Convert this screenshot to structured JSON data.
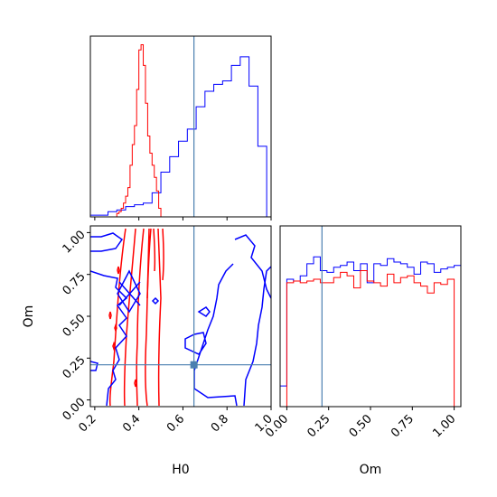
{
  "chart_data": {
    "type": "corner",
    "parameters": [
      "H0",
      "Om"
    ],
    "xlabels": {
      "H0": "H0",
      "Om": "Om"
    },
    "ylabels": {
      "Om": "Om"
    },
    "ranges": {
      "H0": [
        0.18,
        1.0
      ],
      "Om": [
        -0.04,
        1.04
      ]
    },
    "ticks": {
      "H0": {
        "values": [
          0.2,
          0.4,
          0.6,
          0.8,
          1.0
        ],
        "labels": [
          "0.2",
          "0.4",
          "0.6",
          "0.8",
          "1.0"
        ]
      },
      "Om": {
        "values": [
          0.0,
          0.25,
          0.5,
          0.75,
          1.0
        ],
        "labels": [
          "0.00",
          "0.25",
          "0.50",
          "0.75",
          "1.00"
        ]
      }
    },
    "truth": {
      "H0": 0.65,
      "Om": 0.21,
      "color": "#4a7fb0"
    },
    "series_colors": {
      "red": "#ff0000",
      "blue": "#0000ff"
    },
    "hist_H0": {
      "bin_edges": [
        0.18,
        0.22,
        0.26,
        0.3,
        0.34,
        0.38,
        0.42,
        0.46,
        0.5,
        0.54,
        0.58,
        0.62,
        0.66,
        0.7,
        0.74,
        0.78,
        0.82,
        0.86,
        0.9,
        0.94,
        0.98
      ],
      "blue": [
        0.01,
        0.01,
        0.03,
        0.04,
        0.06,
        0.07,
        0.08,
        0.14,
        0.26,
        0.35,
        0.44,
        0.51,
        0.64,
        0.73,
        0.77,
        0.79,
        0.88,
        0.93,
        0.76,
        0.41
      ],
      "red_x": [
        0.3,
        0.31,
        0.32,
        0.33,
        0.34,
        0.35,
        0.36,
        0.37,
        0.38,
        0.39,
        0.4,
        0.41,
        0.42,
        0.43,
        0.44,
        0.45,
        0.46,
        0.47,
        0.48,
        0.49,
        0.5
      ],
      "red": [
        0.02,
        0.03,
        0.05,
        0.08,
        0.12,
        0.17,
        0.3,
        0.42,
        0.53,
        0.74,
        0.97,
        1.0,
        0.88,
        0.66,
        0.47,
        0.37,
        0.3,
        0.23,
        0.15,
        0.05,
        0.0
      ],
      "ymax": 1.05
    },
    "hist_Om": {
      "bin_edges": [
        -0.04,
        0.0,
        0.04,
        0.08,
        0.12,
        0.16,
        0.2,
        0.24,
        0.28,
        0.32,
        0.36,
        0.4,
        0.44,
        0.48,
        0.52,
        0.56,
        0.6,
        0.64,
        0.68,
        0.72,
        0.76,
        0.8,
        0.84,
        0.88,
        0.92,
        0.96,
        1.0,
        1.04
      ],
      "blue": [
        0.12,
        0.74,
        0.73,
        0.76,
        0.83,
        0.87,
        0.79,
        0.78,
        0.81,
        0.82,
        0.84,
        0.79,
        0.83,
        0.72,
        0.83,
        0.82,
        0.86,
        0.84,
        0.83,
        0.81,
        0.77,
        0.84,
        0.83,
        0.78,
        0.8,
        0.81,
        0.82
      ],
      "red": [
        0.0,
        0.72,
        0.73,
        0.72,
        0.73,
        0.74,
        0.72,
        0.72,
        0.75,
        0.78,
        0.76,
        0.69,
        0.79,
        0.73,
        0.72,
        0.7,
        0.77,
        0.72,
        0.75,
        0.76,
        0.72,
        0.7,
        0.66,
        0.72,
        0.71,
        0.74,
        0.0
      ],
      "ymax": 1.05
    }
  }
}
